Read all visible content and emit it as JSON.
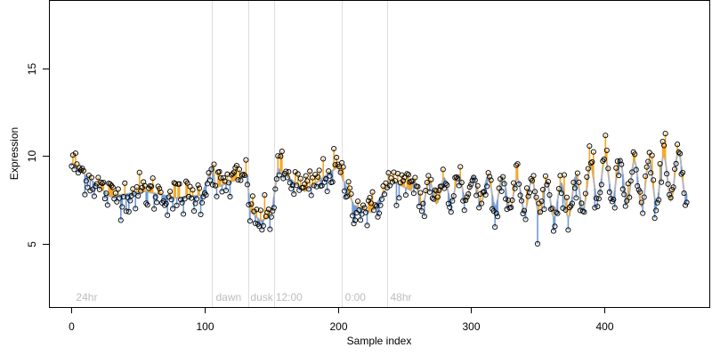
{
  "chart_data": {
    "type": "scatter",
    "title": "",
    "xlabel": "Sample index",
    "ylabel": "Expression",
    "xlim": [
      -17,
      479
    ],
    "ylim": [
      1.4,
      18.9
    ],
    "x_ticks": [
      {
        "value": 0,
        "label": "0"
      },
      {
        "value": 100,
        "label": "100"
      },
      {
        "value": 200,
        "label": "200"
      },
      {
        "value": 300,
        "label": "300"
      },
      {
        "value": 400,
        "label": "400"
      }
    ],
    "y_ticks": [
      {
        "value": 5,
        "label": "5"
      },
      {
        "value": 10,
        "label": "10"
      },
      {
        "value": 15,
        "label": "15"
      }
    ],
    "grid": false,
    "legend": "none",
    "region_boundaries": [
      0,
      105,
      133,
      152,
      203,
      237
    ],
    "region_labels": [
      {
        "x": 2,
        "label": "24hr"
      },
      {
        "x": 107,
        "label": "dawn"
      },
      {
        "x": 133,
        "label": "dusk"
      },
      {
        "x": 152,
        "label": "12:00"
      },
      {
        "x": 204,
        "label": "0:00"
      },
      {
        "x": 238,
        "label": "48hr"
      }
    ],
    "colors": {
      "above_fit": "#f5a623",
      "below_fit": "#6f9ad6",
      "fit_line": "#b5b5b5",
      "region_line": "#dddddd",
      "region_label": "#bdbdbd",
      "point_stroke": "#000000"
    },
    "segments": [
      {
        "start": 0,
        "end": 29,
        "from": 9.6,
        "to": 7.7
      },
      {
        "start": 29,
        "end": 55,
        "from": 7.7,
        "to": 8.0
      },
      {
        "start": 55,
        "end": 80,
        "from": 8.0,
        "to": 7.6
      },
      {
        "start": 80,
        "end": 98,
        "from": 7.6,
        "to": 7.8
      },
      {
        "start": 98,
        "end": 106,
        "from": 7.8,
        "to": 9.5
      },
      {
        "start": 106,
        "end": 108,
        "from": 9.5,
        "to": 8.2
      },
      {
        "start": 108,
        "end": 132,
        "from": 8.2,
        "to": 8.9
      },
      {
        "start": 132,
        "end": 134,
        "from": 8.9,
        "to": 6.9
      },
      {
        "start": 134,
        "end": 142,
        "from": 6.9,
        "to": 6.3
      },
      {
        "start": 142,
        "end": 150,
        "from": 6.3,
        "to": 6.6
      },
      {
        "start": 150,
        "end": 155,
        "from": 6.6,
        "to": 9.3
      },
      {
        "start": 155,
        "end": 175,
        "from": 9.3,
        "to": 8.0
      },
      {
        "start": 175,
        "end": 200,
        "from": 8.0,
        "to": 9.4
      },
      {
        "start": 200,
        "end": 212,
        "from": 9.4,
        "to": 7.2
      },
      {
        "start": 212,
        "end": 225,
        "from": 7.2,
        "to": 6.8
      },
      {
        "start": 225,
        "end": 240,
        "from": 6.8,
        "to": 8.6
      },
      {
        "start": 240,
        "end": 262,
        "from": 8.6,
        "to": 7.8
      },
      {
        "start": 262,
        "end": 290,
        "from": 7.8,
        "to": 8.2
      },
      {
        "start": 290,
        "end": 330,
        "from": 8.2,
        "to": 7.9
      },
      {
        "start": 330,
        "end": 370,
        "from": 7.9,
        "to": 7.4
      },
      {
        "start": 370,
        "end": 400,
        "from": 7.4,
        "to": 8.8
      },
      {
        "start": 400,
        "end": 430,
        "from": 8.8,
        "to": 8.4
      },
      {
        "start": 430,
        "end": 462,
        "from": 8.4,
        "to": 9.1
      }
    ],
    "oscillation": {
      "start": 255,
      "end": 462,
      "amplitude_start": 0.6,
      "amplitude_end": 1.4,
      "period": 11
    },
    "n_samples": 462,
    "noise": 0.55
  }
}
